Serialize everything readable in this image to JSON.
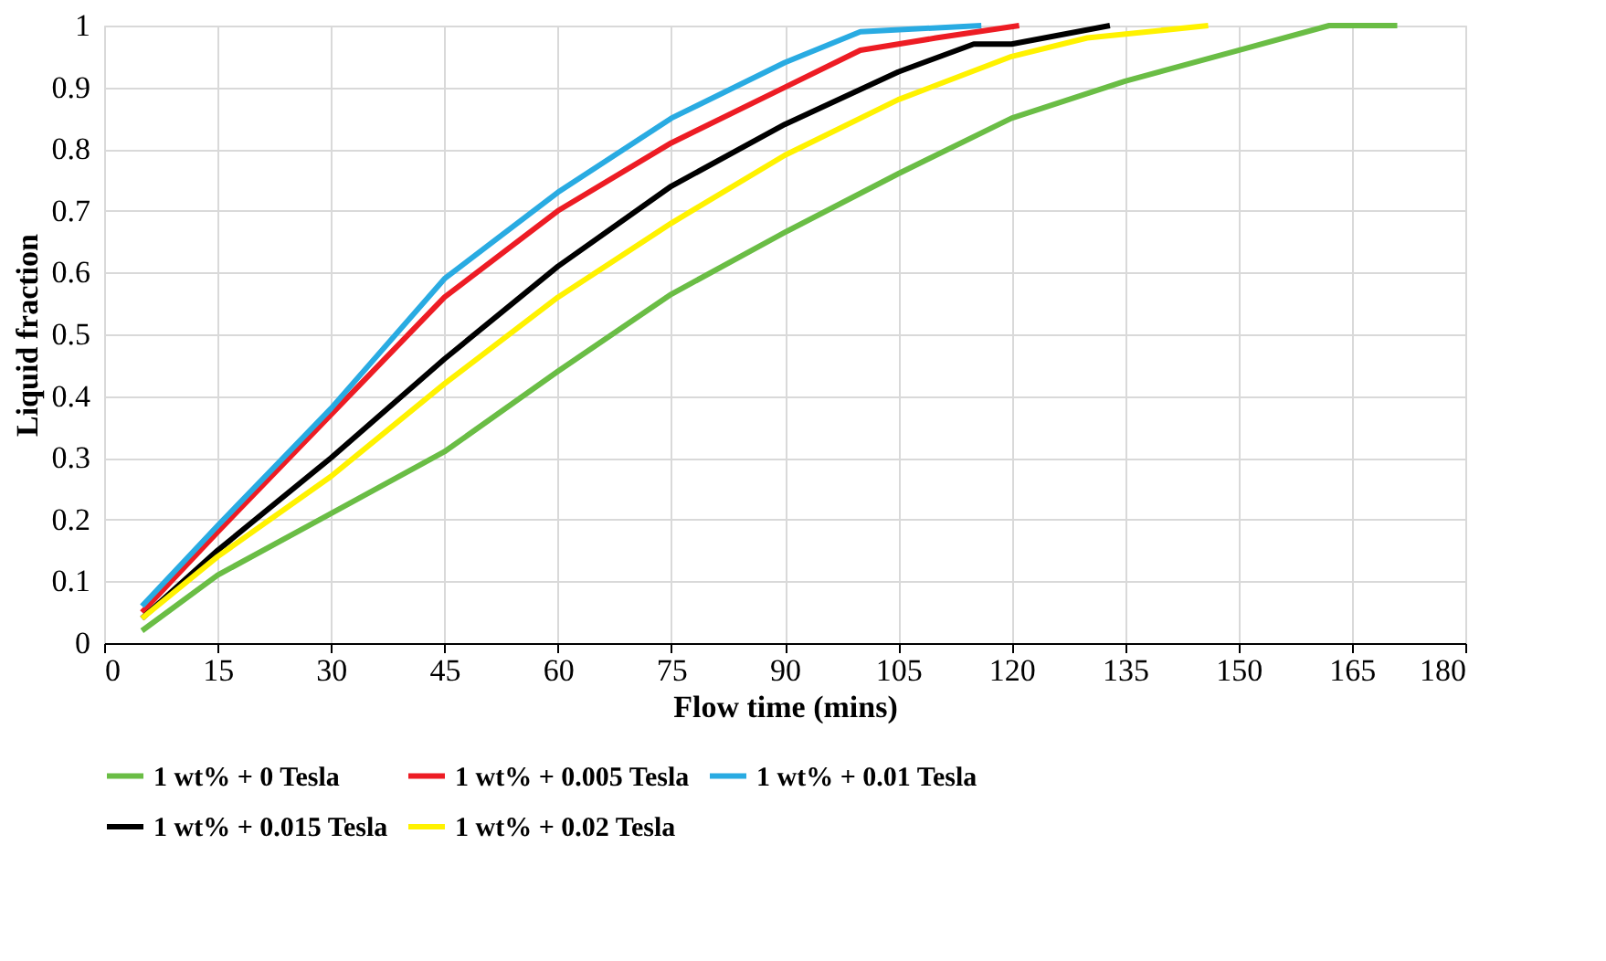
{
  "chart_data": {
    "type": "line",
    "xlabel": "Flow time (mins)",
    "ylabel": "Liquid fraction",
    "xlim": [
      0,
      180
    ],
    "xticks": [
      0,
      15,
      30,
      45,
      60,
      75,
      90,
      105,
      120,
      135,
      150,
      165,
      180
    ],
    "ylim": [
      0,
      1
    ],
    "yticks": [
      0,
      0.1,
      0.2,
      0.3,
      0.4,
      0.5,
      0.6,
      0.7,
      0.8,
      0.9,
      1
    ],
    "grid": true,
    "legend": "bottom",
    "marker": "none",
    "line_style": "solid",
    "series": [
      {
        "name": "1 wt% + 0 Tesla",
        "color": "#6abd45",
        "x": [
          5,
          15,
          30,
          45,
          60,
          75,
          90,
          105,
          120,
          135,
          150,
          162,
          171
        ],
        "values": [
          0.02,
          0.11,
          0.21,
          0.31,
          0.44,
          0.565,
          0.665,
          0.76,
          0.85,
          0.91,
          0.96,
          1.0,
          1.0
        ]
      },
      {
        "name": "1 wt% + 0.005 Tesla",
        "color": "#ed1c24",
        "x": [
          5,
          15,
          30,
          45,
          60,
          75,
          90,
          100,
          110,
          121
        ],
        "values": [
          0.05,
          0.18,
          0.37,
          0.56,
          0.7,
          0.81,
          0.9,
          0.96,
          0.98,
          1.0
        ]
      },
      {
        "name": "1 wt% + 0.01 Tesla",
        "color": "#29abe2",
        "x": [
          5,
          15,
          30,
          45,
          60,
          75,
          90,
          100,
          116
        ],
        "values": [
          0.06,
          0.19,
          0.38,
          0.59,
          0.73,
          0.85,
          0.94,
          0.99,
          1.0
        ]
      },
      {
        "name": "1 wt% + 0.015 Tesla",
        "color": "#000000",
        "x": [
          5,
          15,
          30,
          45,
          60,
          75,
          90,
          105,
          115,
          120,
          133
        ],
        "values": [
          0.04,
          0.15,
          0.3,
          0.46,
          0.61,
          0.74,
          0.84,
          0.925,
          0.97,
          0.97,
          1.0
        ]
      },
      {
        "name": "1 wt% + 0.02 Tesla",
        "color": "#fff200",
        "x": [
          5,
          15,
          30,
          45,
          60,
          75,
          90,
          105,
          120,
          130,
          146
        ],
        "values": [
          0.04,
          0.14,
          0.27,
          0.42,
          0.56,
          0.68,
          0.79,
          0.88,
          0.95,
          0.98,
          1.0
        ]
      }
    ]
  }
}
